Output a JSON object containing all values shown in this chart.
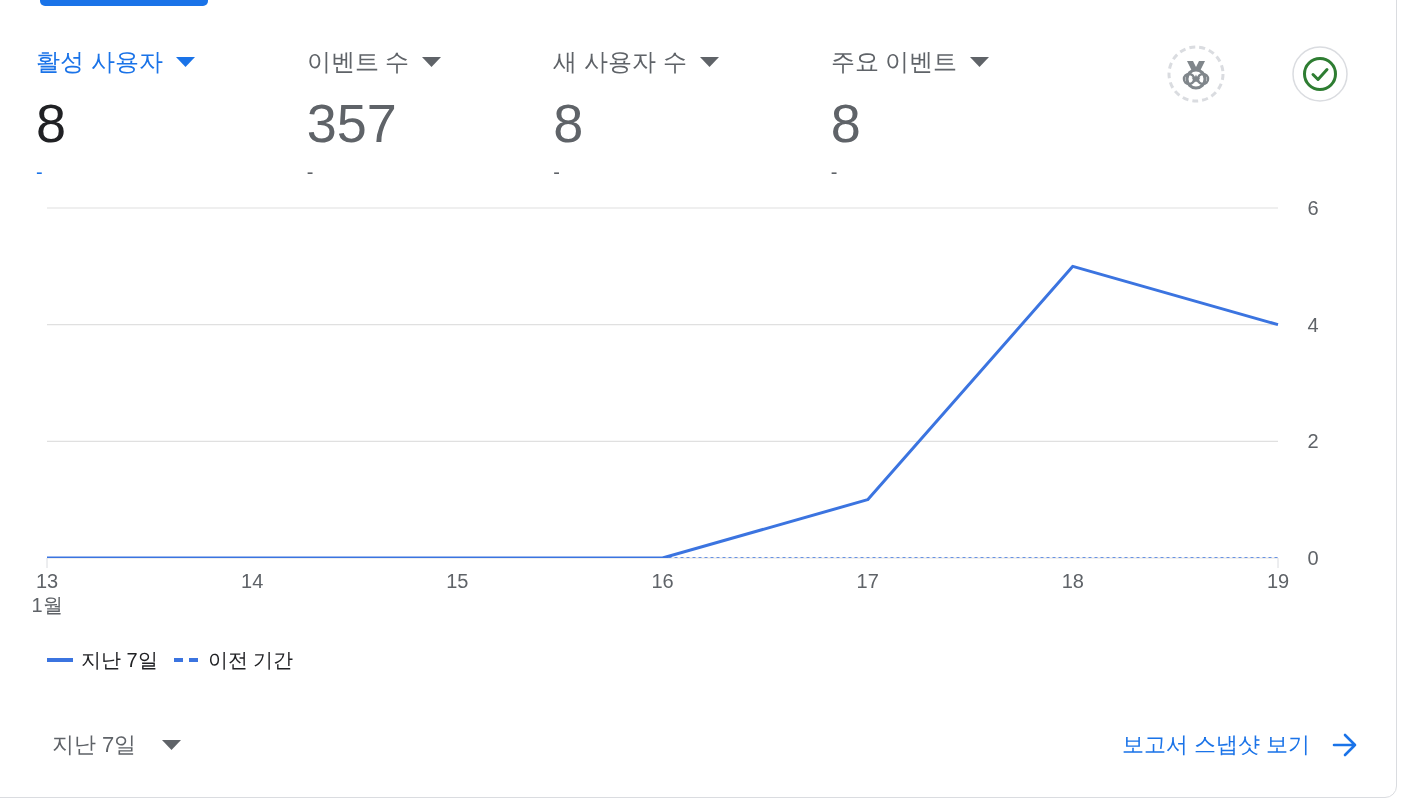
{
  "chart_data": [
    {
      "type": "other",
      "categories": [
        "활성 사용자",
        "이벤트 수",
        "새 사용자 수",
        "주요 이벤트"
      ],
      "values": [
        8,
        357,
        8,
        8
      ],
      "data_labels": true,
      "annotations": [
        "-",
        "-",
        "-",
        "-"
      ]
    },
    {
      "type": "line",
      "categories": [
        "13",
        "14",
        "15",
        "16",
        "17",
        "18",
        "19"
      ],
      "series": [
        {
          "name": "지난 7일",
          "color": "#3b74e0",
          "line_style": "solid",
          "values": [
            0,
            0,
            0,
            0,
            1,
            5,
            4
          ]
        },
        {
          "name": "이전 기간",
          "color": "#3b74e0",
          "line_style": "dashed",
          "values": [
            null,
            null,
            null,
            0,
            0,
            0,
            0
          ]
        }
      ],
      "ylim": [
        0,
        6
      ],
      "yticks": [
        0,
        2,
        4,
        6
      ],
      "grid": "y",
      "legend": "bottom left",
      "annotations": [
        "1월",
        "지난 7일",
        "보고서 스냅샷 보기"
      ]
    }
  ]
}
